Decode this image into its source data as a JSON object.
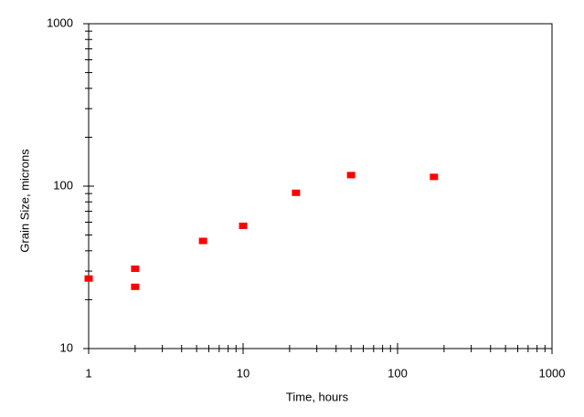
{
  "chart_data": {
    "type": "scatter",
    "xlabel": "Time, hours",
    "ylabel": "Grain Size, microns",
    "xscale": "log",
    "yscale": "log",
    "xlim": [
      1,
      1000
    ],
    "ylim": [
      10,
      1000
    ],
    "xticks": [
      1,
      10,
      100,
      1000
    ],
    "yticks": [
      10,
      100,
      1000
    ],
    "xminorticks": [
      2,
      3,
      4,
      5,
      6,
      7,
      8,
      9,
      20,
      30,
      40,
      50,
      60,
      70,
      80,
      90,
      200,
      300,
      400,
      500,
      600,
      700,
      800,
      900
    ],
    "yminorticks": [
      20,
      30,
      40,
      50,
      60,
      70,
      80,
      90,
      200,
      300,
      400,
      500,
      600,
      700,
      800,
      900
    ],
    "color": "#ff0000",
    "x": [
      1,
      2,
      2,
      5.5,
      10,
      22,
      50,
      172
    ],
    "values": [
      27,
      31,
      24,
      46,
      57,
      91,
      117,
      114
    ]
  }
}
